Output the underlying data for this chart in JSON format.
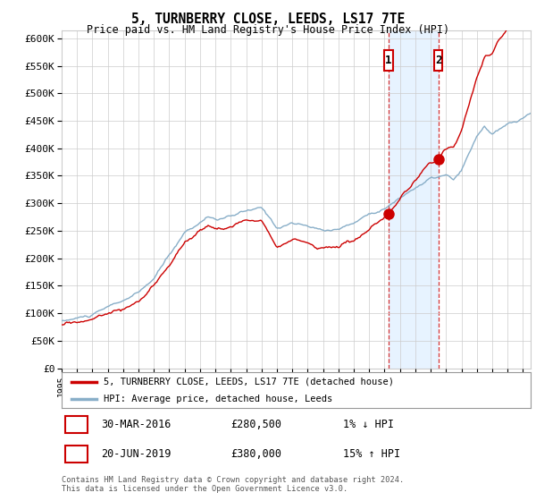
{
  "title": "5, TURNBERRY CLOSE, LEEDS, LS17 7TE",
  "subtitle": "Price paid vs. HM Land Registry's House Price Index (HPI)",
  "ylabel_ticks": [
    "£0",
    "£50K",
    "£100K",
    "£150K",
    "£200K",
    "£250K",
    "£300K",
    "£350K",
    "£400K",
    "£450K",
    "£500K",
    "£550K",
    "£600K"
  ],
  "yticks": [
    0,
    50000,
    100000,
    150000,
    200000,
    250000,
    300000,
    350000,
    400000,
    450000,
    500000,
    550000,
    600000
  ],
  "ylim": [
    0,
    615000
  ],
  "sale1_date": 2016.25,
  "sale1_price": 280500,
  "sale2_date": 2019.5,
  "sale2_price": 380000,
  "sale_color": "#cc0000",
  "hpi_color": "#88aec8",
  "span_color": "#ddeeff",
  "legend_label1": "5, TURNBERRY CLOSE, LEEDS, LS17 7TE (detached house)",
  "legend_label2": "HPI: Average price, detached house, Leeds",
  "annotation1_date": "30-MAR-2016",
  "annotation1_price": "£280,500",
  "annotation1_hpi": "1% ↓ HPI",
  "annotation2_date": "20-JUN-2019",
  "annotation2_price": "£380,000",
  "annotation2_hpi": "15% ↑ HPI",
  "footer1": "Contains HM Land Registry data © Crown copyright and database right 2024.",
  "footer2": "This data is licensed under the Open Government Licence v3.0.",
  "background_color": "#ffffff",
  "grid_color": "#cccccc",
  "box_color": "#cc0000",
  "xlim_start": 1995,
  "xlim_end": 2025.5
}
